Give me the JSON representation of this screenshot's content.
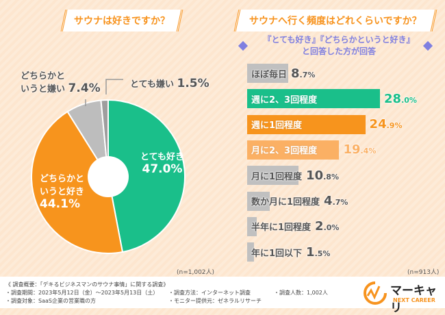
{
  "chart_data": [
    {
      "type": "pie",
      "title": "サウナは好きですか？",
      "note": "(n=1,002人)",
      "slices": [
        {
          "label": "とても好き",
          "value": 47.0,
          "color": "#1abf8a"
        },
        {
          "label": "どちらかというと好き",
          "value": 44.1,
          "color": "#f7941d"
        },
        {
          "label": "どちらかというと嫌い",
          "value": 7.4,
          "color": "#bdbdbd"
        },
        {
          "label": "とても嫌い",
          "value": 1.5,
          "color": "#9e9e9e"
        }
      ]
    },
    {
      "type": "bar",
      "orientation": "horizontal",
      "title": "サウナへ行く頻度はどれくらいですか？",
      "subtitle": "『とても好き』『どちらかというと好き』と回答した方が回答",
      "note": "(n=913人)",
      "categories": [
        "ほぼ毎日",
        "週に2、3回程度",
        "週に1回程度",
        "月に2、3回程度",
        "月に1回程度",
        "数か月に1回程度",
        "半年に1回程度",
        "年に1回以下"
      ],
      "values": [
        8.7,
        28.0,
        24.9,
        19.4,
        10.8,
        4.7,
        2.0,
        1.5
      ],
      "colors": [
        "#c0c0c0",
        "#1abf8a",
        "#f7941d",
        "#fbb064",
        "#c0c0c0",
        "#c0c0c0",
        "#c0c0c0",
        "#c0c0c0"
      ],
      "unit": "%"
    }
  ],
  "footer": {
    "l1": "《 調査概要：「デキるビジネスマンのサウナ事情」に関する調査》",
    "l2": "・調査期間：2023年5月12日（金）～2023年5月13日（土）",
    "l3": "・調査対象：SaaS企業の営業職の方",
    "l4": "・調査方法：インターネット調査",
    "l5": "・モニター提供元：ゼネラルリサーチ",
    "l6": "・調査人数：1,002人"
  },
  "logo": {
    "name": "マーキャリ",
    "tag": "NEXT CAREER",
    "color": "#f7931e"
  }
}
